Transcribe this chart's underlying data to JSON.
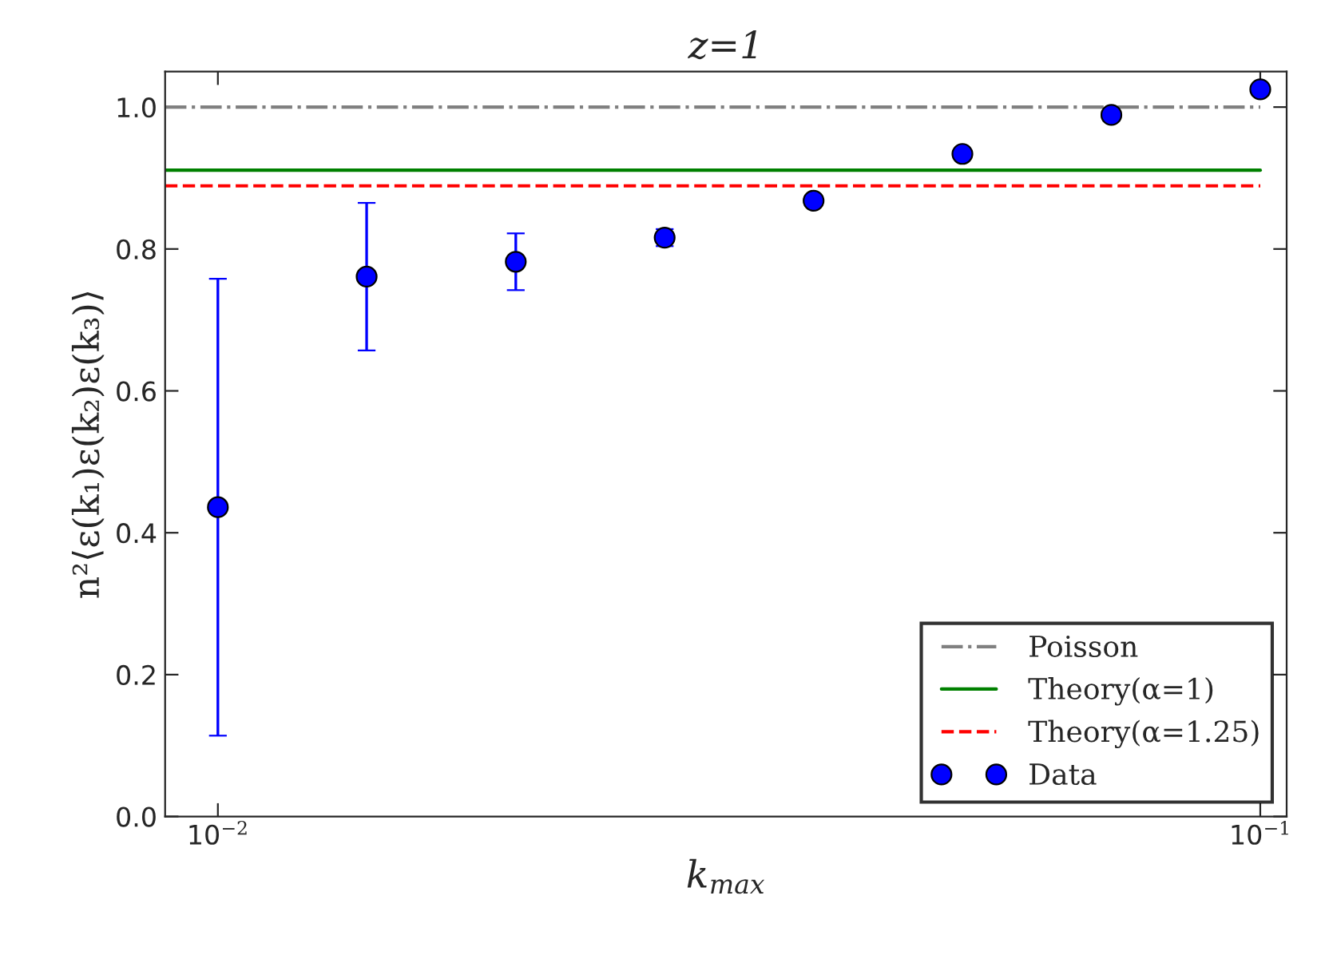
{
  "chart_data": {
    "type": "scatter",
    "title": "z=1",
    "xlabel": "k$_{max}$",
    "ylabel": "n²⟨ε(k₁)ε(k₂)ε(k₃)⟩",
    "log": "x",
    "xlim": [
      0.0089,
      0.106
    ],
    "xticks": [
      {
        "value": 0.01,
        "label": "10$^{−2}$"
      },
      {
        "value": 0.1,
        "label": "10$^{−1}$"
      }
    ],
    "ylim": [
      0,
      1.05
    ],
    "yticks": [
      {
        "value": 0,
        "label": "0.0"
      },
      {
        "value": 0.2,
        "label": "0.2"
      },
      {
        "value": 0.4,
        "label": "0.4"
      },
      {
        "value": 0.6,
        "label": "0.6"
      },
      {
        "value": 0.8,
        "label": "0.8"
      },
      {
        "value": 1,
        "label": "1.0"
      }
    ],
    "grid": false,
    "legend": "bottom right",
    "series": [
      {
        "name": "Poisson",
        "type": "line",
        "color": "#808080",
        "line_style": "dashdot",
        "x": [
          0.0089,
          0.1
        ],
        "values": [
          1.0,
          1.0
        ]
      },
      {
        "name": "Theory(α=1)",
        "type": "line",
        "color": "#008000",
        "line_style": "solid",
        "x": [
          0.0089,
          0.1
        ],
        "values": [
          0.911,
          0.911
        ]
      },
      {
        "name": "Theory(α=1.25)",
        "type": "line",
        "color": "#ff0000",
        "line_style": "dashed",
        "x": [
          0.0089,
          0.1
        ],
        "values": [
          0.889,
          0.889
        ]
      },
      {
        "name": "Data",
        "color": "#0000ff",
        "marker": "circle",
        "x": [
          0.01,
          0.01389,
          0.01931,
          0.02683,
          0.03728,
          0.05179,
          0.07197,
          0.1
        ],
        "values": [
          0.436,
          0.761,
          0.782,
          0.816,
          0.868,
          0.934,
          0.989,
          1.025
        ],
        "errors": [
          0.322,
          0.104,
          0.04,
          0.012,
          null,
          null,
          null,
          null
        ]
      }
    ]
  }
}
